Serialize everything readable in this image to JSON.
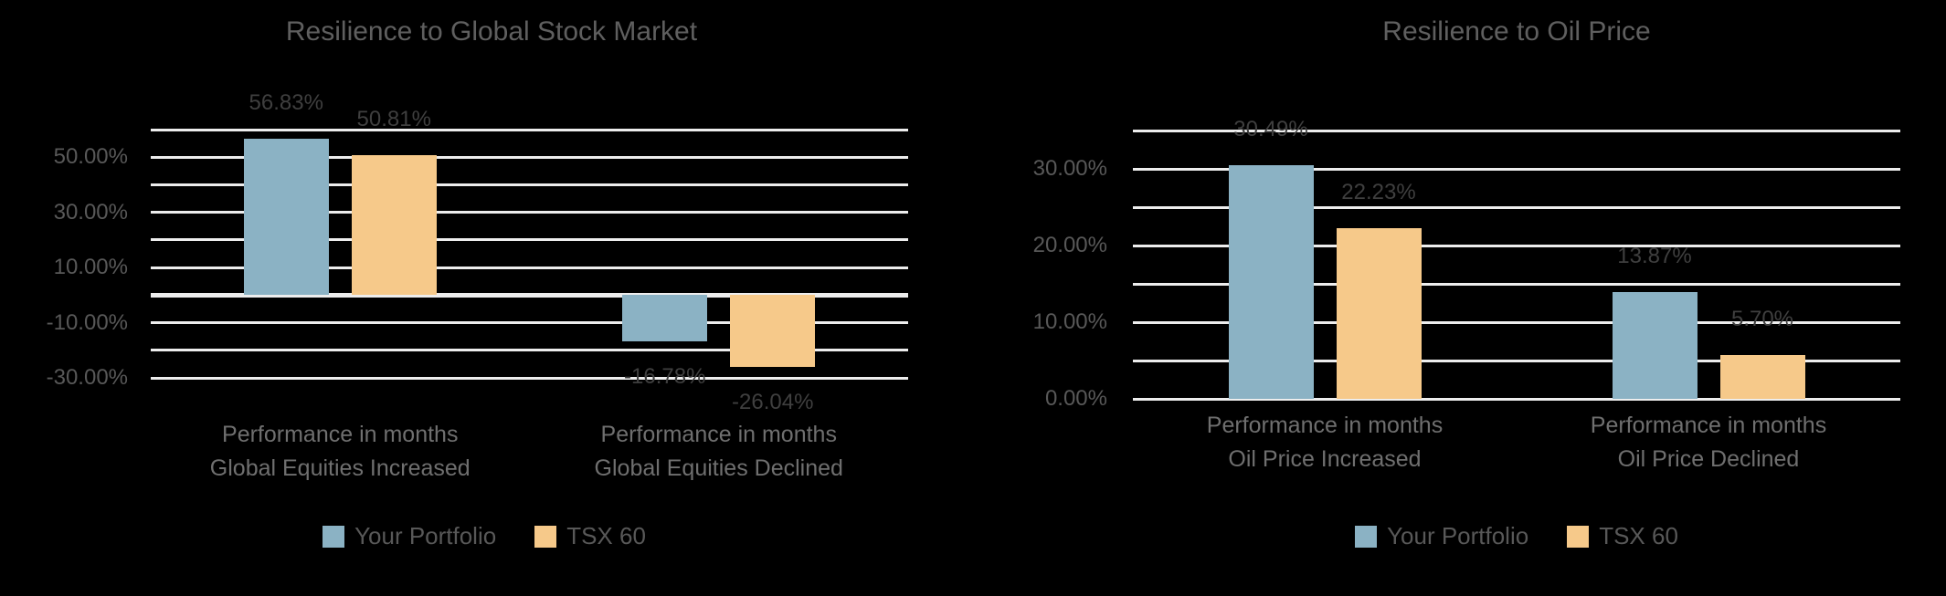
{
  "colors": {
    "background": "#000000",
    "gridline": "#EDEDED",
    "title_text": "#5F5F5F",
    "axis_text": "#585858",
    "data_label_text": "#3F3F3F",
    "category_text": "#6F6F6F",
    "legend_text": "#585858",
    "series_blue": "#8BB2C4",
    "series_orange": "#F6C98A"
  },
  "chart_data": [
    {
      "type": "bar",
      "title": "Resilience to Global Stock Market",
      "categories": [
        [
          "Performance in months",
          "Global Equities Increased"
        ],
        [
          "Performance in months",
          "Global Equities Declined"
        ]
      ],
      "series": [
        {
          "name": "Your Portfolio",
          "color": "#8BB2C4",
          "values": [
            56.83,
            -16.78
          ],
          "data_labels": [
            "56.83%",
            "-16.78%"
          ]
        },
        {
          "name": "TSX 60",
          "color": "#F6C98A",
          "values": [
            50.81,
            -26.04
          ],
          "data_labels": [
            "50.81%",
            "-26.04%"
          ]
        }
      ],
      "y_axis": {
        "min": -30,
        "max": 60,
        "grid_step": 10,
        "tick_values": [
          50,
          30,
          10,
          -10,
          -30
        ],
        "tick_labels": [
          "50.00%",
          "30.00%",
          "10.00%",
          "-10.00%",
          "-30.00%"
        ]
      },
      "xlabel": "",
      "ylabel": "",
      "grid": true,
      "legend": {
        "position": "bottom",
        "entries": [
          "Your Portfolio",
          "TSX 60"
        ]
      }
    },
    {
      "type": "bar",
      "title": "Resilience to Oil Price",
      "categories": [
        [
          "Performance in months",
          "Oil Price Increased"
        ],
        [
          "Performance in months",
          "Oil Price Declined"
        ]
      ],
      "series": [
        {
          "name": "Your Portfolio",
          "color": "#8BB2C4",
          "values": [
            30.49,
            13.87
          ],
          "data_labels": [
            "30.49%",
            "13.87%"
          ]
        },
        {
          "name": "TSX 60",
          "color": "#F6C98A",
          "values": [
            22.23,
            5.7
          ],
          "data_labels": [
            "22.23%",
            "5.70%"
          ]
        }
      ],
      "y_axis": {
        "min": 0,
        "max": 35,
        "grid_step": 5,
        "tick_values": [
          30,
          20,
          10,
          0
        ],
        "tick_labels": [
          "30.00%",
          "20.00%",
          "10.00%",
          "0.00%"
        ]
      },
      "xlabel": "",
      "ylabel": "",
      "grid": true,
      "legend": {
        "position": "bottom",
        "entries": [
          "Your Portfolio",
          "TSX 60"
        ]
      }
    }
  ]
}
